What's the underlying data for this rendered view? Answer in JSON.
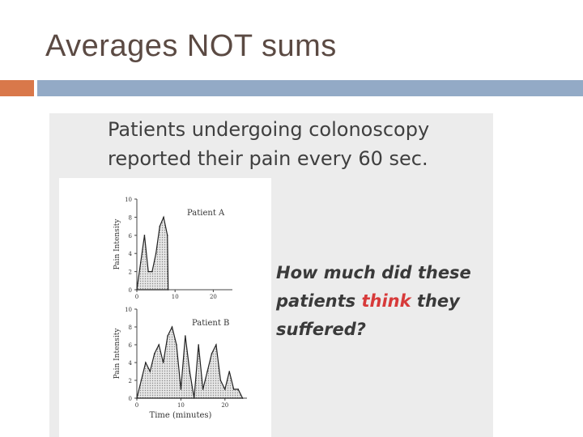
{
  "slide": {
    "title": "Averages NOT sums"
  },
  "figure": {
    "heading_line1": "Patients undergoing colonoscopy",
    "heading_line2": "reported their pain every 60 sec.",
    "question_part1": "How much did these",
    "question_part2_pre": "patients ",
    "question_emphasis": "think",
    "question_part2_post": " they",
    "question_part3": "suffered?"
  },
  "colors": {
    "title_text": "#5b4a43",
    "accent_orange": "#d9784a",
    "accent_blue": "#93aac6",
    "emphasis": "#d73a3a"
  },
  "chart_data": [
    {
      "type": "area",
      "panel": "Patient A",
      "ylabel": "Pain Intensity",
      "xlabel": "",
      "xlim": [
        0,
        25
      ],
      "ylim": [
        0,
        10
      ],
      "xticks": [
        0,
        10,
        20
      ],
      "yticks": [
        0,
        2,
        4,
        6,
        8,
        10
      ],
      "series": [
        {
          "name": "Patient A",
          "x": [
            0,
            1,
            2,
            3,
            4,
            5,
            6,
            7,
            8,
            8.2
          ],
          "values": [
            0,
            3,
            6,
            2,
            2,
            4,
            7,
            8,
            6,
            0
          ]
        }
      ]
    },
    {
      "type": "area",
      "panel": "Patient B",
      "ylabel": "Pain Intensity",
      "xlabel": "Time (minutes)",
      "xlim": [
        0,
        25
      ],
      "ylim": [
        0,
        10
      ],
      "xticks": [
        0,
        10,
        20
      ],
      "yticks": [
        0,
        2,
        4,
        6,
        8,
        10
      ],
      "series": [
        {
          "name": "Patient B",
          "x": [
            0,
            1,
            2,
            3,
            4,
            5,
            6,
            7,
            8,
            9,
            10,
            11,
            12,
            13,
            14,
            15,
            16,
            17,
            18,
            19,
            20,
            21,
            22,
            23,
            24
          ],
          "values": [
            0,
            2,
            4,
            3,
            5,
            6,
            4,
            7,
            8,
            6,
            1,
            7,
            3,
            0,
            6,
            1,
            3,
            5,
            6,
            2,
            1,
            3,
            1,
            1,
            0
          ]
        }
      ]
    }
  ]
}
